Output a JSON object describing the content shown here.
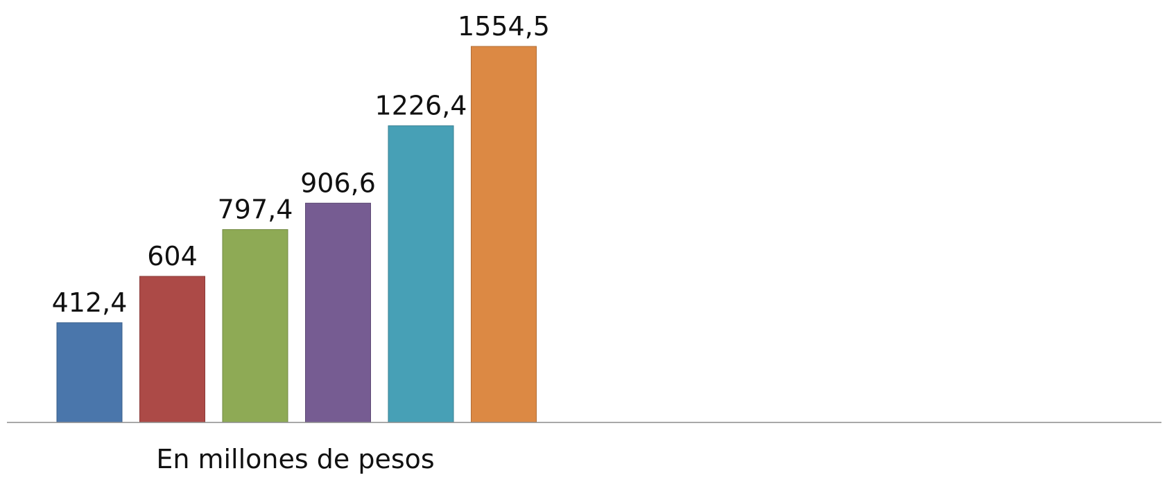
{
  "chart_data": {
    "type": "bar",
    "xlabel": "En millones de pesos",
    "ylabel": "",
    "title": "",
    "ylim": [
      0,
      1554.5
    ],
    "grid": false,
    "legend": "none",
    "series": [
      {
        "value": 412.4,
        "label": "412,4",
        "color": "#4a76ab",
        "stroke": "#3b5f8a"
      },
      {
        "value": 604,
        "label": "604",
        "color": "#ac4a47",
        "stroke": "#8a3a38"
      },
      {
        "value": 797.4,
        "label": "797,4",
        "color": "#8eaa55",
        "stroke": "#728944"
      },
      {
        "value": 906.6,
        "label": "906,6",
        "color": "#765c92",
        "stroke": "#5e4a75"
      },
      {
        "value": 1226.4,
        "label": "1226,4",
        "color": "#47a0b6",
        "stroke": "#398092"
      },
      {
        "value": 1554.5,
        "label": "1554,5",
        "color": "#dc8944",
        "stroke": "#b06d36"
      }
    ]
  }
}
